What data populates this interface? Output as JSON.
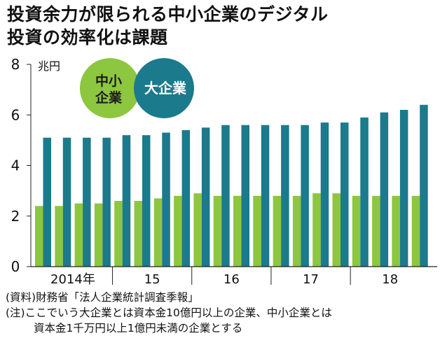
{
  "title_lines": [
    "投資余力が限られる中小企業のデジタル",
    "投資の効率化は課題"
  ],
  "colors": {
    "sme": "#8dc63f",
    "large": "#1b7a8c",
    "text": "#111111",
    "axis": "#222222"
  },
  "chart_data": {
    "type": "bar",
    "title": "投資余力が限られる中小企業のデジタル投資の効率化は課題",
    "ylabel": "兆円",
    "ylim": [
      0,
      8
    ],
    "yticks": [
      0,
      2,
      4,
      6,
      8
    ],
    "year_labels": [
      "2014年",
      "15",
      "16",
      "17",
      "18"
    ],
    "categories": [
      "2014Q1",
      "2014Q2",
      "2014Q3",
      "2014Q4",
      "2015Q1",
      "2015Q2",
      "2015Q3",
      "2015Q4",
      "2016Q1",
      "2016Q2",
      "2016Q3",
      "2016Q4",
      "2017Q1",
      "2017Q2",
      "2017Q3",
      "2017Q4",
      "2018Q1",
      "2018Q2",
      "2018Q3",
      "2018Q4"
    ],
    "series": [
      {
        "name": "中小企業",
        "legend_lines": [
          "中小",
          "企業"
        ],
        "color": "#8dc63f",
        "values": [
          2.4,
          2.4,
          2.5,
          2.5,
          2.6,
          2.6,
          2.7,
          2.8,
          2.9,
          2.8,
          2.8,
          2.8,
          2.8,
          2.8,
          2.9,
          2.9,
          2.8,
          2.8,
          2.8,
          2.8
        ]
      },
      {
        "name": "大企業",
        "legend_lines": [
          "大企業"
        ],
        "color": "#1b7a8c",
        "values": [
          5.1,
          5.1,
          5.1,
          5.1,
          5.2,
          5.2,
          5.3,
          5.4,
          5.5,
          5.6,
          5.6,
          5.6,
          5.6,
          5.6,
          5.7,
          5.7,
          5.9,
          6.1,
          6.2,
          6.4
        ]
      }
    ],
    "legend_position": "top-left"
  },
  "notes": {
    "source": "(資料)財務省「法人企業統計調査季報」",
    "note_line1": "(注)ここでいう大企業とは資本金10億円以上の企業、中小企業とは",
    "note_line2": "資本金1千万円以上1億円未満の企業とする"
  }
}
